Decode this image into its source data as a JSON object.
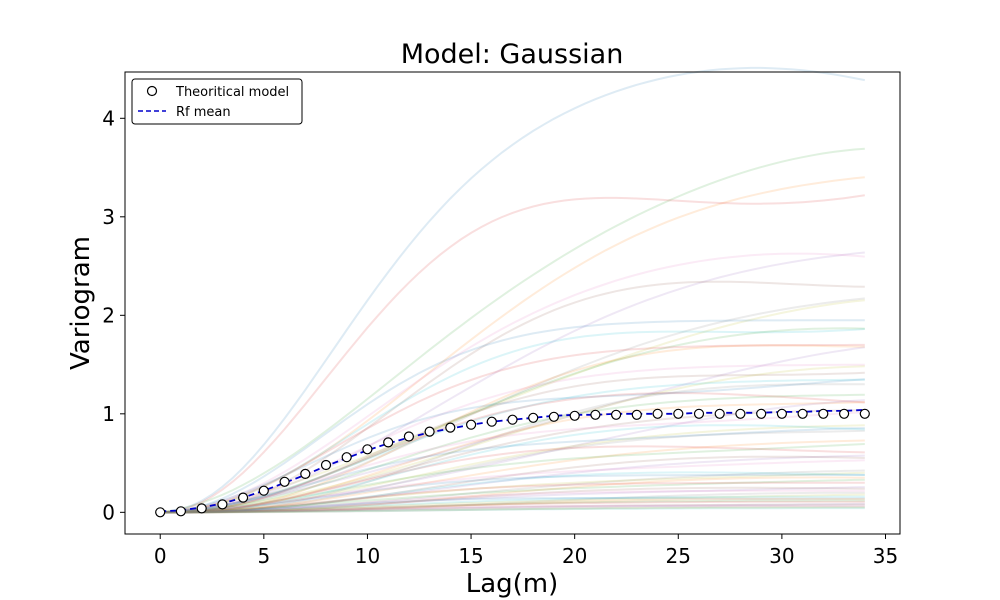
{
  "chart_data": {
    "type": "line",
    "title": "Model: Gaussian",
    "xlabel": "Lag(m)",
    "ylabel": "Variogram",
    "xlim": [
      -1.7,
      35.7
    ],
    "ylim": [
      -0.22,
      4.47
    ],
    "xticks": [
      0,
      5,
      10,
      15,
      20,
      25,
      30,
      35
    ],
    "yticks": [
      0,
      1,
      2,
      3,
      4
    ],
    "grid": false,
    "legend_position": "top-left",
    "legend": [
      {
        "label": "Theoritical model",
        "marker": "open-circle",
        "color": "#000000"
      },
      {
        "label": "Rf mean",
        "style": "dashed",
        "color": "#0000cc"
      }
    ],
    "series": [
      {
        "name": "Theoritical model",
        "x": [
          0,
          1,
          2,
          3,
          4,
          5,
          6,
          7,
          8,
          9,
          10,
          11,
          12,
          13,
          14,
          15,
          16,
          17,
          18,
          19,
          20,
          21,
          22,
          23,
          24,
          25,
          26,
          27,
          28,
          29,
          30,
          31,
          32,
          33,
          34
        ],
        "y": [
          0,
          0.01,
          0.04,
          0.08,
          0.15,
          0.22,
          0.31,
          0.39,
          0.48,
          0.56,
          0.64,
          0.71,
          0.77,
          0.82,
          0.86,
          0.89,
          0.92,
          0.94,
          0.96,
          0.97,
          0.98,
          0.99,
          0.99,
          0.99,
          1,
          1,
          1,
          1,
          1,
          1,
          1,
          1,
          1,
          1,
          1
        ]
      },
      {
        "name": "Rf mean",
        "x": [
          0,
          1,
          2,
          3,
          4,
          5,
          6,
          7,
          8,
          9,
          10,
          11,
          12,
          13,
          14,
          15,
          16,
          17,
          18,
          19,
          20,
          21,
          22,
          23,
          24,
          25,
          26,
          27,
          28,
          29,
          30,
          31,
          32,
          33,
          34
        ],
        "y": [
          0.01,
          0.02,
          0.05,
          0.09,
          0.15,
          0.22,
          0.3,
          0.38,
          0.47,
          0.55,
          0.63,
          0.7,
          0.76,
          0.81,
          0.85,
          0.89,
          0.92,
          0.94,
          0.96,
          0.98,
          0.99,
          0.99,
          1,
          1,
          1,
          1,
          1.01,
          1.01,
          1.01,
          1.01,
          1.02,
          1.02,
          1.03,
          1.03,
          1.04
        ]
      }
    ],
    "realizations": {
      "count": 60,
      "opacity": 0.15,
      "colors": [
        "#1f77b4",
        "#ff7f0e",
        "#2ca02c",
        "#d62728",
        "#9467bd",
        "#8c564b",
        "#e377c2",
        "#7f7f7f",
        "#bcbd22",
        "#17becf"
      ],
      "sills": [
        4.2,
        3.5,
        3.45,
        3.4,
        2.75,
        2.5,
        2.45,
        2.3,
        2.05,
        2.0,
        1.95,
        1.85,
        1.75,
        1.7,
        1.65,
        1.55,
        1.5,
        1.45,
        1.4,
        1.35,
        1.3,
        1.25,
        1.2,
        1.15,
        1.1,
        1.05,
        1.0,
        0.95,
        0.9,
        0.85,
        0.8,
        0.75,
        0.7,
        0.65,
        0.6,
        0.55,
        0.5,
        0.45,
        0.42,
        0.4,
        0.38,
        0.35,
        0.32,
        0.3,
        0.28,
        0.25,
        0.22,
        0.2,
        0.18,
        0.16,
        0.15,
        0.14,
        0.12,
        0.1,
        0.09,
        0.08,
        0.07,
        0.06,
        0.05,
        0.04
      ]
    }
  }
}
